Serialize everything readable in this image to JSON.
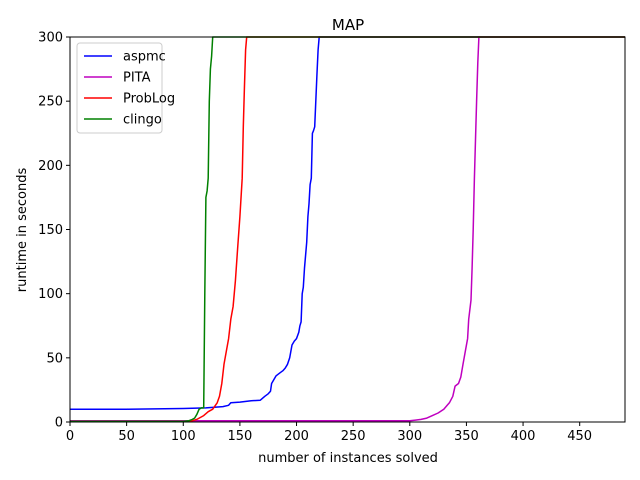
{
  "chart_data": {
    "type": "line",
    "title": "MAP",
    "xlabel": "number of instances solved",
    "ylabel": "runtime in seconds",
    "xlim": [
      0,
      490
    ],
    "ylim": [
      0,
      300
    ],
    "xticks": [
      0,
      50,
      100,
      150,
      200,
      250,
      300,
      350,
      400,
      450
    ],
    "yticks": [
      0,
      50,
      100,
      150,
      200,
      250,
      300
    ],
    "grid": false,
    "legend_position": "top-left",
    "series": [
      {
        "name": "aspmc",
        "color": "#0000ff",
        "x": [
          0,
          50,
          100,
          120,
          135,
          140,
          142,
          150,
          160,
          168,
          172,
          175,
          177,
          178,
          182,
          185,
          188,
          190,
          192,
          194,
          196,
          198,
          200,
          202,
          203,
          204,
          205,
          206,
          207,
          208,
          209,
          210,
          211,
          212,
          213,
          214,
          215,
          216,
          218,
          219,
          220,
          221,
          490
        ],
        "y": [
          10,
          10,
          10.5,
          11,
          12,
          13,
          15,
          15.5,
          16.5,
          17,
          20,
          22,
          24,
          30,
          36,
          38,
          40,
          42,
          45,
          50,
          60,
          63,
          65,
          70,
          75,
          78,
          100,
          105,
          120,
          130,
          140,
          160,
          170,
          185,
          190,
          225,
          227,
          230,
          270,
          290,
          300,
          300,
          300
        ]
      },
      {
        "name": "PITA",
        "color": "#bf00bf",
        "x": [
          0,
          100,
          200,
          300,
          305,
          310,
          315,
          320,
          325,
          330,
          333,
          335,
          338,
          340,
          343,
          345,
          347,
          349,
          351,
          352,
          354,
          355,
          356,
          357,
          358,
          359,
          360,
          361,
          362,
          490
        ],
        "y": [
          1,
          1,
          1,
          1,
          1.5,
          2,
          3,
          5,
          7,
          10,
          13,
          15,
          20,
          28,
          30,
          35,
          45,
          55,
          65,
          80,
          95,
          120,
          150,
          190,
          220,
          250,
          280,
          300,
          300,
          300
        ]
      },
      {
        "name": "ProbLog",
        "color": "#ff0000",
        "x": [
          0,
          50,
          100,
          108,
          112,
          118,
          122,
          126,
          130,
          132,
          134,
          136,
          138,
          140,
          142,
          144,
          146,
          148,
          150,
          152,
          153,
          154,
          155,
          156,
          490
        ],
        "y": [
          0.5,
          0.5,
          0.5,
          1,
          2,
          5,
          8,
          10,
          15,
          20,
          30,
          45,
          55,
          65,
          80,
          90,
          110,
          135,
          160,
          190,
          230,
          260,
          290,
          300,
          300
        ]
      },
      {
        "name": "clingo",
        "color": "#008000",
        "x": [
          0,
          50,
          100,
          105,
          108,
          110,
          112,
          114,
          116,
          118,
          119,
          120,
          121,
          122,
          123,
          124,
          125,
          126,
          127,
          490
        ],
        "y": [
          0.5,
          0.5,
          0.5,
          1,
          2,
          3,
          6,
          10,
          11,
          11,
          100,
          175,
          180,
          190,
          250,
          275,
          285,
          300,
          300,
          300
        ]
      }
    ]
  }
}
